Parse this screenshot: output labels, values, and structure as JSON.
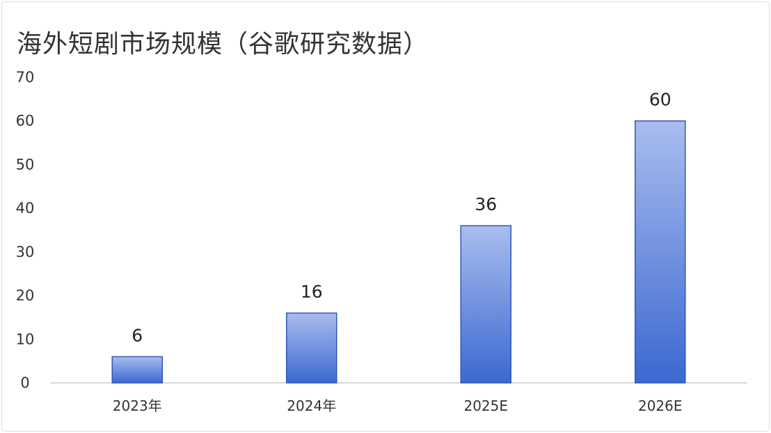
{
  "title": "海外短剧市场规模（谷歌研究数据）",
  "chart_data": {
    "type": "bar",
    "title": "海外短剧市场规模（谷歌研究数据）",
    "categories": [
      "2023年",
      "2024年",
      "2025E",
      "2026E"
    ],
    "values": [
      6,
      16,
      36,
      60
    ],
    "data_labels": [
      "6",
      "16",
      "36",
      "60"
    ],
    "xlabel": "",
    "ylabel": "",
    "ylim": [
      0,
      70
    ],
    "yticks": [
      0,
      10,
      20,
      30,
      40,
      50,
      60,
      70
    ],
    "grid": false,
    "legend": "none",
    "colors": {
      "bar_top": "#a9bdee",
      "bar_bottom": "#3b68d1",
      "bar_border": "#2f56b8",
      "axis": "#c9ccd3"
    }
  }
}
